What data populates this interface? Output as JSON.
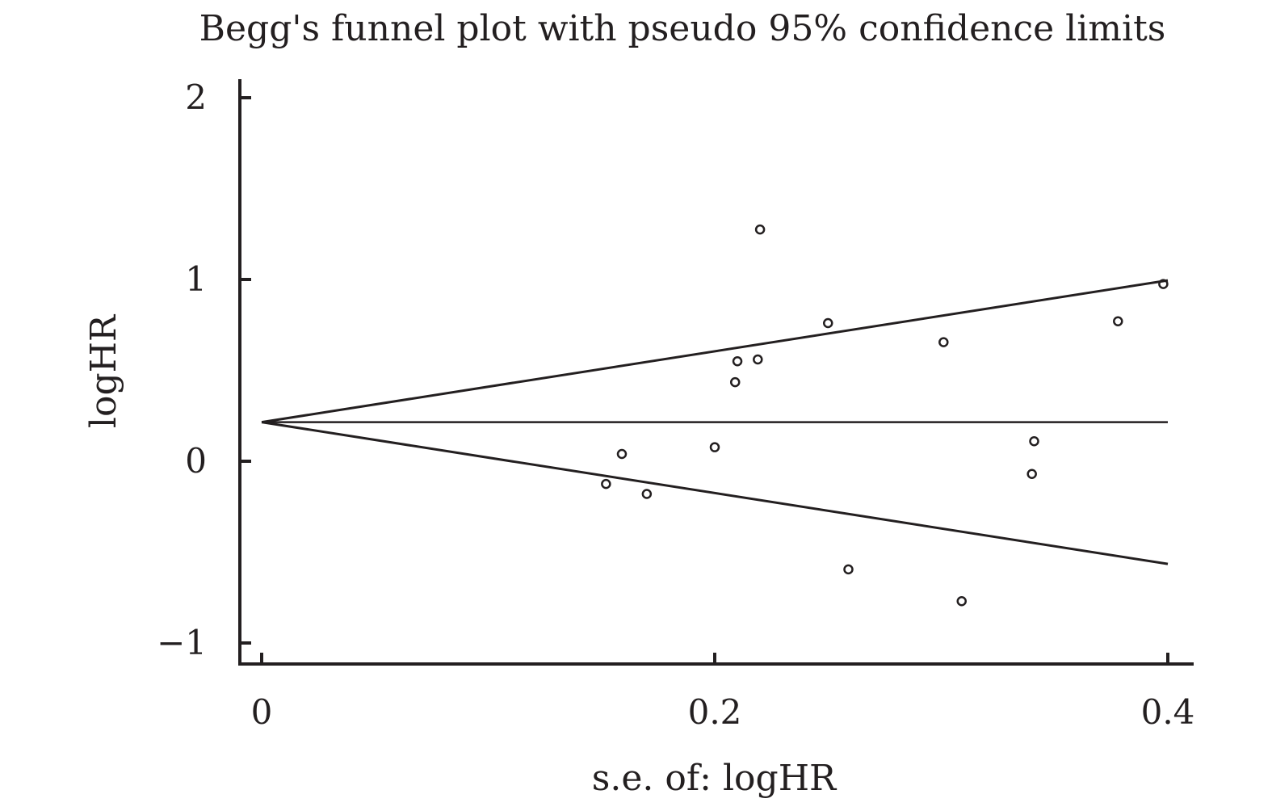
{
  "chart_data": {
    "type": "scatter",
    "title": "Begg's funnel plot with pseudo 95% confidence limits",
    "xlabel": "s.e. of: logHR",
    "ylabel": "logHR",
    "xlim": [
      0,
      0.4
    ],
    "ylim": [
      -1,
      2
    ],
    "x_ticks": [
      {
        "value": 0,
        "label": "0"
      },
      {
        "value": 0.2,
        "label": "0.2"
      },
      {
        "value": 0.4,
        "label": "0.4"
      }
    ],
    "y_ticks": [
      {
        "value": -1,
        "label": "−1"
      },
      {
        "value": 0,
        "label": "0"
      },
      {
        "value": 1,
        "label": "1"
      },
      {
        "value": 2,
        "label": "2"
      }
    ],
    "grid": false,
    "pooled_estimate": 0.215,
    "pseudo_ci": {
      "x_max": 0.4,
      "upper_at_x_max": 0.995,
      "lower_at_x_max": -0.565
    },
    "points": [
      {
        "x": 0.152,
        "y": -0.125
      },
      {
        "x": 0.159,
        "y": 0.04
      },
      {
        "x": 0.17,
        "y": -0.18
      },
      {
        "x": 0.2,
        "y": 0.077
      },
      {
        "x": 0.209,
        "y": 0.435
      },
      {
        "x": 0.21,
        "y": 0.55
      },
      {
        "x": 0.219,
        "y": 0.56
      },
      {
        "x": 0.22,
        "y": 1.275
      },
      {
        "x": 0.25,
        "y": 0.76
      },
      {
        "x": 0.259,
        "y": -0.595
      },
      {
        "x": 0.301,
        "y": 0.655
      },
      {
        "x": 0.309,
        "y": -0.77
      },
      {
        "x": 0.34,
        "y": -0.07
      },
      {
        "x": 0.341,
        "y": 0.11
      },
      {
        "x": 0.378,
        "y": 0.77
      },
      {
        "x": 0.398,
        "y": 0.975
      }
    ]
  }
}
